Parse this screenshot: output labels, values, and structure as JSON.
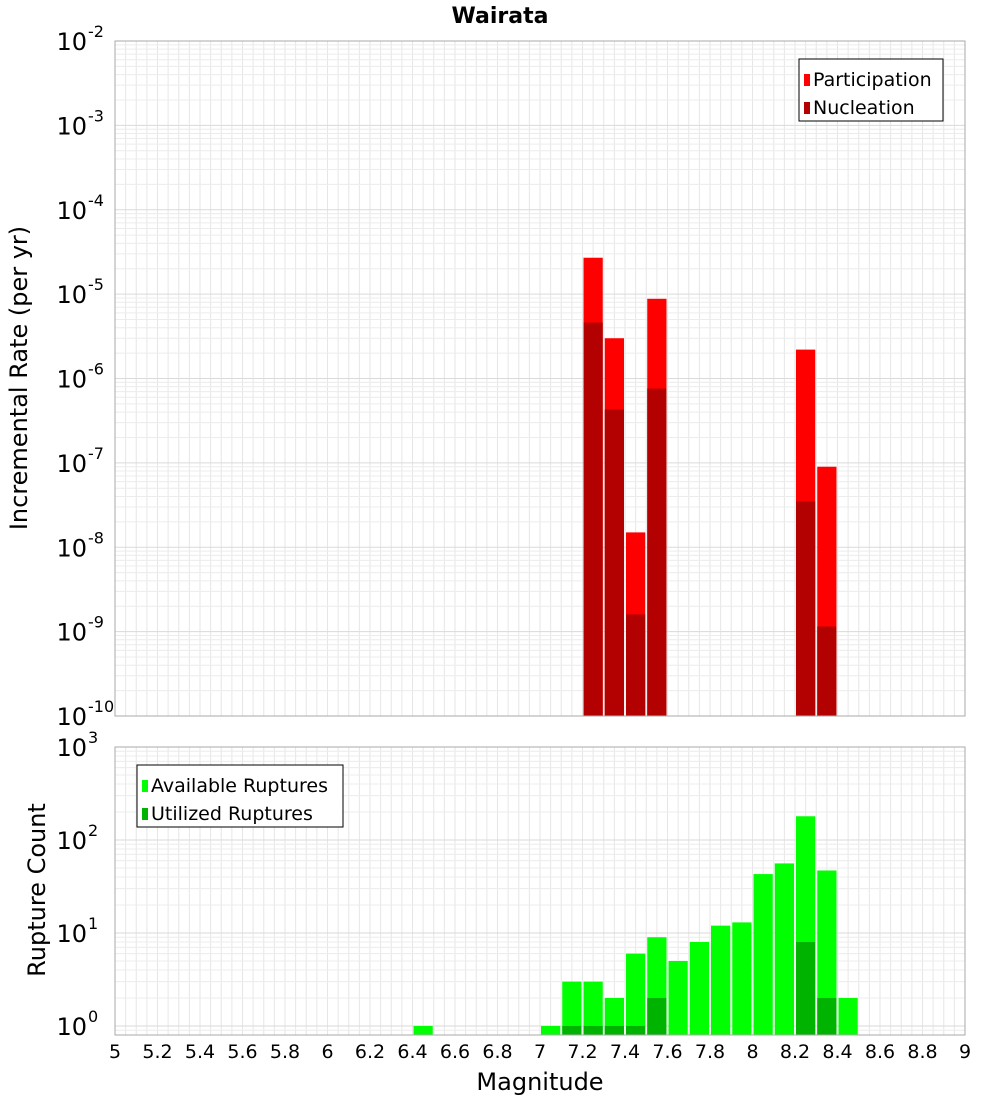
{
  "chart_data": [
    {
      "type": "bar",
      "title": "Wairata",
      "xlabel": "",
      "ylabel": "Incremental Rate (per yr)",
      "yscale": "log",
      "ylim": [
        1e-10,
        0.01
      ],
      "xlim": [
        5,
        9
      ],
      "ytick_labels": [
        "10^-10",
        "10^-9",
        "10^-8",
        "10^-7",
        "10^-6",
        "10^-5",
        "10^-4",
        "10^-3",
        "10^-2"
      ],
      "legend": "top-right",
      "grid": true,
      "x": [
        7.25,
        7.35,
        7.45,
        7.55,
        8.25,
        8.35
      ],
      "series": [
        {
          "name": "Participation",
          "color": "#ff0000",
          "values": [
            2.7e-05,
            3e-06,
            1.5e-08,
            8.8e-06,
            2.2e-06,
            9e-08
          ]
        },
        {
          "name": "Nucleation",
          "color": "#b30000",
          "values": [
            4.6e-06,
            4.3e-07,
            1.6e-09,
            7.6e-07,
            3.5e-08,
            1.15e-09
          ]
        }
      ]
    },
    {
      "type": "bar",
      "title": "",
      "xlabel": "Magnitude",
      "ylabel": "Rupture Count",
      "yscale": "log",
      "ylim": [
        0.8,
        1000
      ],
      "xlim": [
        5,
        9
      ],
      "xtick_labels": [
        "5",
        "5.2",
        "5.4",
        "5.6",
        "5.8",
        "6",
        "6.2",
        "6.4",
        "6.6",
        "6.8",
        "7",
        "7.2",
        "7.4",
        "7.6",
        "7.8",
        "8",
        "8.2",
        "8.4",
        "8.6",
        "8.8",
        "9"
      ],
      "ytick_labels": [
        "10^0",
        "10^1",
        "10^2",
        "10^3"
      ],
      "legend": "top-left",
      "grid": true,
      "x": [
        6.45,
        7.05,
        7.15,
        7.25,
        7.35,
        7.45,
        7.55,
        7.65,
        7.75,
        7.85,
        7.95,
        8.05,
        8.15,
        8.25,
        8.35,
        8.45
      ],
      "series": [
        {
          "name": "Available Ruptures",
          "color": "#00ff00",
          "values": [
            1,
            1,
            3,
            3,
            2,
            6,
            9,
            5,
            8,
            12,
            13,
            43,
            56,
            180,
            47,
            2
          ]
        },
        {
          "name": "Utilized Ruptures",
          "color": "#00b300",
          "values": [
            0,
            0,
            1,
            1,
            1,
            1,
            2,
            0,
            0,
            0,
            0,
            0,
            0,
            8,
            2,
            0
          ]
        }
      ]
    }
  ]
}
